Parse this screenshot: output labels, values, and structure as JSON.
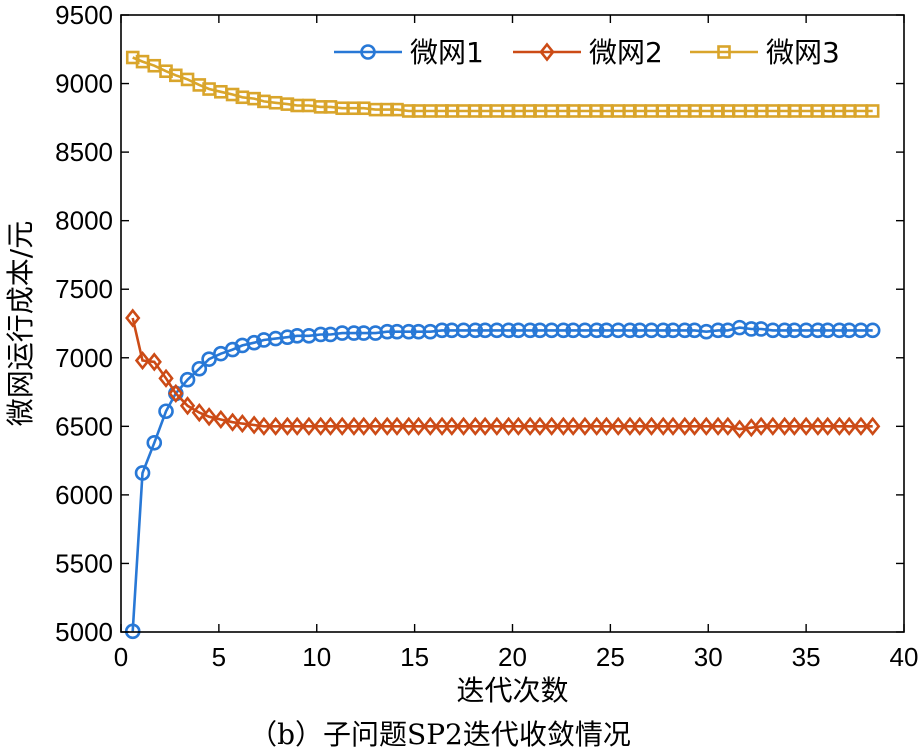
{
  "chart_data": {
    "type": "line",
    "title": "",
    "caption": "（b）子问题SP2迭代收敛情况",
    "xlabel": "迭代次数",
    "ylabel": "微网运行成本/元",
    "xlim": [
      0,
      40
    ],
    "ylim": [
      5000,
      9500
    ],
    "xticks": [
      0,
      5,
      10,
      15,
      20,
      25,
      30,
      35,
      40
    ],
    "yticks": [
      5000,
      5500,
      6000,
      6500,
      7000,
      7500,
      8000,
      8500,
      9000,
      9500
    ],
    "grid": false,
    "legend_position": "top-right",
    "x": [
      0.6,
      1.1,
      1.7,
      2.3,
      2.8,
      3.4,
      4.0,
      4.5,
      5.1,
      5.7,
      6.2,
      6.8,
      7.3,
      7.9,
      8.5,
      9.0,
      9.6,
      10.2,
      10.7,
      11.3,
      11.9,
      12.4,
      13.0,
      13.6,
      14.1,
      14.7,
      15.2,
      15.8,
      16.4,
      16.9,
      17.5,
      18.1,
      18.6,
      19.2,
      19.8,
      20.3,
      20.9,
      21.4,
      22.0,
      22.6,
      23.1,
      23.7,
      24.3,
      24.8,
      25.4,
      26.0,
      26.5,
      27.1,
      27.7,
      28.2,
      28.8,
      29.3,
      29.9,
      30.5,
      31.0,
      31.6,
      32.2,
      32.7,
      33.3,
      33.9,
      34.4,
      35.0,
      35.6,
      36.1,
      36.7,
      37.2,
      37.8,
      38.4
    ],
    "series": [
      {
        "name": "微网1",
        "color": "#2878d6",
        "marker": "circle",
        "values": [
          5005,
          6160,
          6380,
          6610,
          6740,
          6840,
          6920,
          6990,
          7030,
          7060,
          7090,
          7110,
          7130,
          7140,
          7150,
          7160,
          7160,
          7170,
          7170,
          7180,
          7180,
          7180,
          7180,
          7190,
          7190,
          7190,
          7190,
          7190,
          7200,
          7200,
          7200,
          7200,
          7200,
          7200,
          7200,
          7200,
          7200,
          7200,
          7200,
          7200,
          7200,
          7200,
          7200,
          7200,
          7200,
          7200,
          7200,
          7200,
          7200,
          7200,
          7200,
          7200,
          7190,
          7200,
          7200,
          7220,
          7210,
          7210,
          7200,
          7200,
          7200,
          7200,
          7200,
          7200,
          7200,
          7200,
          7200,
          7200
        ]
      },
      {
        "name": "微网2",
        "color": "#cc4b16",
        "marker": "diamond",
        "values": [
          7290,
          6980,
          6970,
          6850,
          6740,
          6650,
          6600,
          6570,
          6550,
          6530,
          6520,
          6510,
          6500,
          6500,
          6500,
          6500,
          6500,
          6500,
          6500,
          6500,
          6500,
          6500,
          6500,
          6500,
          6500,
          6500,
          6500,
          6500,
          6500,
          6500,
          6500,
          6500,
          6500,
          6500,
          6500,
          6500,
          6500,
          6500,
          6500,
          6500,
          6500,
          6500,
          6500,
          6500,
          6500,
          6500,
          6500,
          6500,
          6500,
          6500,
          6500,
          6500,
          6500,
          6500,
          6500,
          6480,
          6490,
          6500,
          6500,
          6500,
          6500,
          6500,
          6500,
          6500,
          6500,
          6500,
          6500,
          6500
        ]
      },
      {
        "name": "微网3",
        "color": "#d9a52b",
        "marker": "square",
        "values": [
          9190,
          9160,
          9130,
          9090,
          9060,
          9030,
          8990,
          8960,
          8940,
          8920,
          8900,
          8890,
          8870,
          8860,
          8850,
          8840,
          8840,
          8830,
          8830,
          8820,
          8820,
          8820,
          8810,
          8810,
          8810,
          8800,
          8800,
          8800,
          8800,
          8800,
          8800,
          8800,
          8800,
          8800,
          8800,
          8800,
          8800,
          8800,
          8800,
          8800,
          8800,
          8800,
          8800,
          8800,
          8800,
          8800,
          8800,
          8800,
          8800,
          8800,
          8800,
          8800,
          8800,
          8800,
          8800,
          8800,
          8800,
          8800,
          8800,
          8800,
          8800,
          8800,
          8800,
          8800,
          8800,
          8800,
          8800,
          8800
        ]
      }
    ]
  }
}
